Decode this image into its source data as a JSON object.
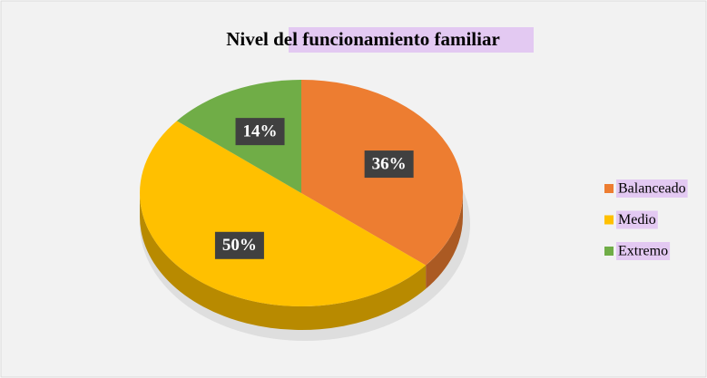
{
  "chart_data": {
    "type": "pie",
    "title": "Nivel del funcionamiento familiar",
    "categories": [
      "Balanceado",
      "Medio",
      "Extremo"
    ],
    "values": [
      36,
      50,
      14
    ],
    "value_labels": [
      "36%",
      "50%",
      "14%"
    ],
    "colors": [
      "#ED7D31",
      "#FFC000",
      "#70AD47"
    ],
    "legend": "right"
  }
}
